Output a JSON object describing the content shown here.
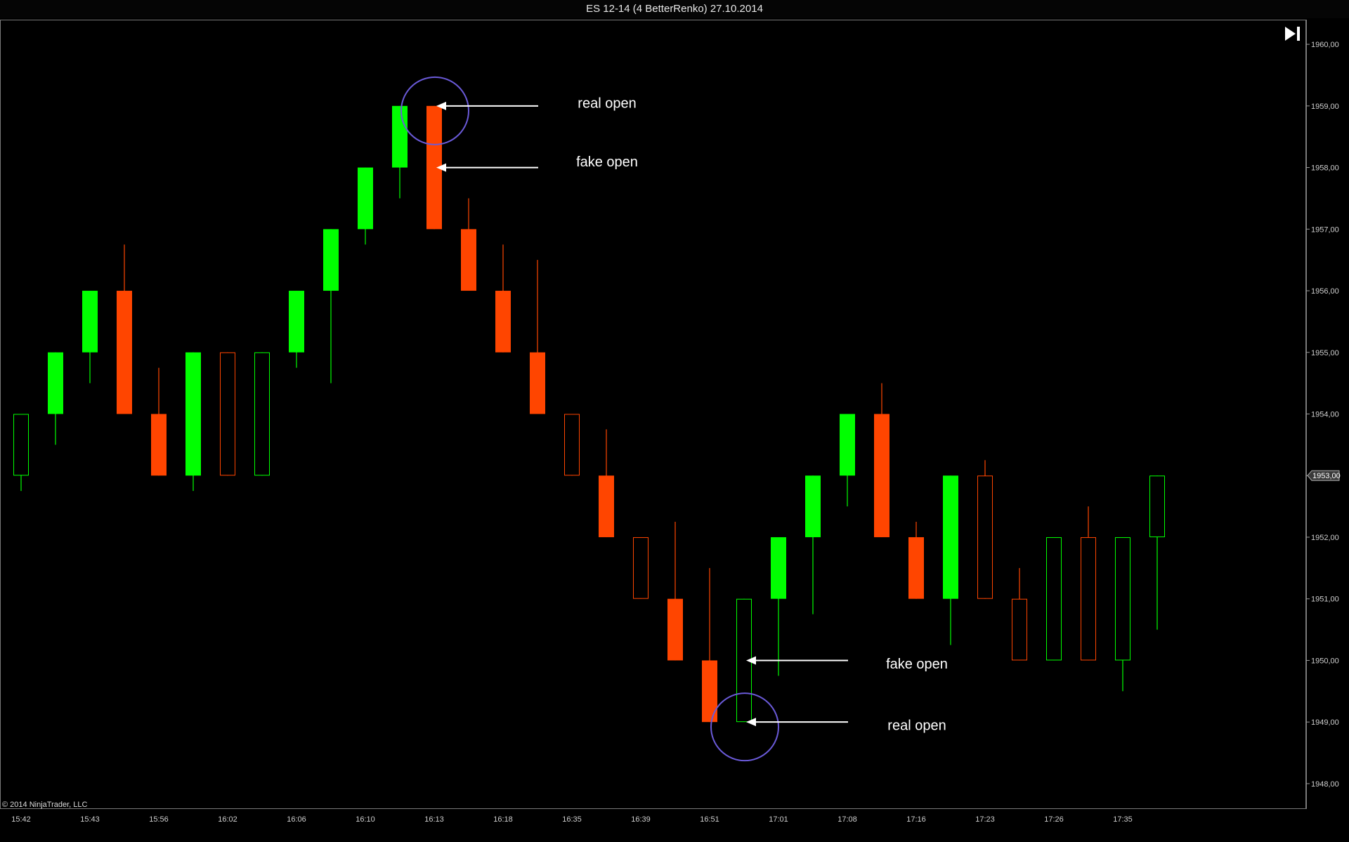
{
  "window": {
    "title": "ES 12-14 (4 BetterRenko)  27.10.2014"
  },
  "footer": {
    "copyright": "© 2014 NinjaTrader, LLC"
  },
  "toolbar": {
    "go_end_icon": "skip-to-end-icon"
  },
  "colors": {
    "up": "#00ff00",
    "down": "#ff4500",
    "circle": "#6a5ad8",
    "arrow": "#ffffff",
    "axis": "#cfcfcf",
    "frame": "#7a7a7a"
  },
  "chart_data": {
    "type": "candlestick",
    "title": "ES 12-14 (4 BetterRenko)  27.10.2014",
    "ylim": [
      1947.6,
      1960.4
    ],
    "y_ticks": [
      "1948,00",
      "1949,00",
      "1950,00",
      "1951,00",
      "1952,00",
      "1953,00",
      "1954,00",
      "1955,00",
      "1956,00",
      "1957,00",
      "1958,00",
      "1959,00",
      "1960,00"
    ],
    "x_ticks": [
      {
        "label": "15:42",
        "bar": 0
      },
      {
        "label": "15:43",
        "bar": 2
      },
      {
        "label": "15:56",
        "bar": 4
      },
      {
        "label": "16:02",
        "bar": 6
      },
      {
        "label": "16:06",
        "bar": 8
      },
      {
        "label": "16:10",
        "bar": 10
      },
      {
        "label": "16:13",
        "bar": 12
      },
      {
        "label": "16:18",
        "bar": 14
      },
      {
        "label": "16:35",
        "bar": 16
      },
      {
        "label": "16:39",
        "bar": 18
      },
      {
        "label": "16:51",
        "bar": 20
      },
      {
        "label": "17:01",
        "bar": 22
      },
      {
        "label": "17:08",
        "bar": 24
      },
      {
        "label": "17:16",
        "bar": 26
      },
      {
        "label": "17:23",
        "bar": 28
      },
      {
        "label": "17:26",
        "bar": 30
      },
      {
        "label": "17:35",
        "bar": 32
      }
    ],
    "last_price": "1953,00",
    "bars": [
      {
        "o": 1953,
        "c": 1954,
        "h": 1954,
        "l": 1952.75,
        "dir": "up",
        "filled": false
      },
      {
        "o": 1954,
        "c": 1955,
        "h": 1955,
        "l": 1953.5,
        "dir": "up",
        "filled": true
      },
      {
        "o": 1955,
        "c": 1956,
        "h": 1956,
        "l": 1954.5,
        "dir": "up",
        "filled": true
      },
      {
        "o": 1956,
        "c": 1954,
        "h": 1956.75,
        "l": 1954,
        "dir": "down",
        "filled": true
      },
      {
        "o": 1954,
        "c": 1953,
        "h": 1954.75,
        "l": 1953,
        "dir": "down",
        "filled": true
      },
      {
        "o": 1953,
        "c": 1955,
        "h": 1955,
        "l": 1952.75,
        "dir": "up",
        "filled": true
      },
      {
        "o": 1955,
        "c": 1953,
        "h": 1955,
        "l": 1953,
        "dir": "down",
        "filled": false
      },
      {
        "o": 1953,
        "c": 1955,
        "h": 1955,
        "l": 1953,
        "dir": "up",
        "filled": false
      },
      {
        "o": 1955,
        "c": 1956,
        "h": 1956,
        "l": 1954.75,
        "dir": "up",
        "filled": true
      },
      {
        "o": 1956,
        "c": 1957,
        "h": 1957,
        "l": 1954.5,
        "dir": "up",
        "filled": true
      },
      {
        "o": 1957,
        "c": 1958,
        "h": 1958,
        "l": 1956.75,
        "dir": "up",
        "filled": true
      },
      {
        "o": 1958,
        "c": 1959,
        "h": 1959,
        "l": 1957.5,
        "dir": "up",
        "filled": true
      },
      {
        "o": 1959,
        "c": 1957,
        "h": 1959,
        "l": 1957,
        "dir": "down",
        "filled": true
      },
      {
        "o": 1957,
        "c": 1956,
        "h": 1957.5,
        "l": 1956,
        "dir": "down",
        "filled": true
      },
      {
        "o": 1956,
        "c": 1955,
        "h": 1956.75,
        "l": 1955,
        "dir": "down",
        "filled": true
      },
      {
        "o": 1955,
        "c": 1954,
        "h": 1956.5,
        "l": 1954,
        "dir": "down",
        "filled": true
      },
      {
        "o": 1954,
        "c": 1953,
        "h": 1954,
        "l": 1953,
        "dir": "down",
        "filled": false
      },
      {
        "o": 1953,
        "c": 1952,
        "h": 1953.75,
        "l": 1952,
        "dir": "down",
        "filled": true
      },
      {
        "o": 1952,
        "c": 1951,
        "h": 1952,
        "l": 1951,
        "dir": "down",
        "filled": false
      },
      {
        "o": 1951,
        "c": 1950,
        "h": 1952.25,
        "l": 1950,
        "dir": "down",
        "filled": true
      },
      {
        "o": 1950,
        "c": 1949,
        "h": 1951.5,
        "l": 1949,
        "dir": "down",
        "filled": true
      },
      {
        "o": 1949,
        "c": 1951,
        "h": 1951,
        "l": 1949,
        "dir": "up",
        "filled": false
      },
      {
        "o": 1951,
        "c": 1952,
        "h": 1952,
        "l": 1949.75,
        "dir": "up",
        "filled": true
      },
      {
        "o": 1952,
        "c": 1953,
        "h": 1953,
        "l": 1950.75,
        "dir": "up",
        "filled": true
      },
      {
        "o": 1953,
        "c": 1954,
        "h": 1954,
        "l": 1952.5,
        "dir": "up",
        "filled": true
      },
      {
        "o": 1954,
        "c": 1952,
        "h": 1954.5,
        "l": 1952,
        "dir": "down",
        "filled": true
      },
      {
        "o": 1952,
        "c": 1951,
        "h": 1952.25,
        "l": 1951,
        "dir": "down",
        "filled": true
      },
      {
        "o": 1951,
        "c": 1953,
        "h": 1953,
        "l": 1950.25,
        "dir": "up",
        "filled": true
      },
      {
        "o": 1953,
        "c": 1951,
        "h": 1953.25,
        "l": 1951,
        "dir": "down",
        "filled": false
      },
      {
        "o": 1951,
        "c": 1950,
        "h": 1951.5,
        "l": 1950,
        "dir": "down",
        "filled": false
      },
      {
        "o": 1950,
        "c": 1952,
        "h": 1952,
        "l": 1950,
        "dir": "up",
        "filled": false
      },
      {
        "o": 1952,
        "c": 1950,
        "h": 1952.5,
        "l": 1950,
        "dir": "down",
        "filled": false
      },
      {
        "o": 1950,
        "c": 1952,
        "h": 1952,
        "l": 1949.5,
        "dir": "up",
        "filled": false
      },
      {
        "o": 1952,
        "c": 1953,
        "h": 1953,
        "l": 1950.5,
        "dir": "up",
        "filled": false
      }
    ],
    "annotations": [
      {
        "text": "real open",
        "bar": 12,
        "price": 1959,
        "label_price": 1959.05,
        "circle": true
      },
      {
        "text": "fake open",
        "bar": 12,
        "price": 1958,
        "label_price": 1958.1,
        "circle": false
      },
      {
        "text": "fake open",
        "bar": 21,
        "price": 1950,
        "label_price": 1949.95,
        "circle": false
      },
      {
        "text": "real open",
        "bar": 21,
        "price": 1949,
        "label_price": 1948.95,
        "circle": true
      }
    ]
  }
}
